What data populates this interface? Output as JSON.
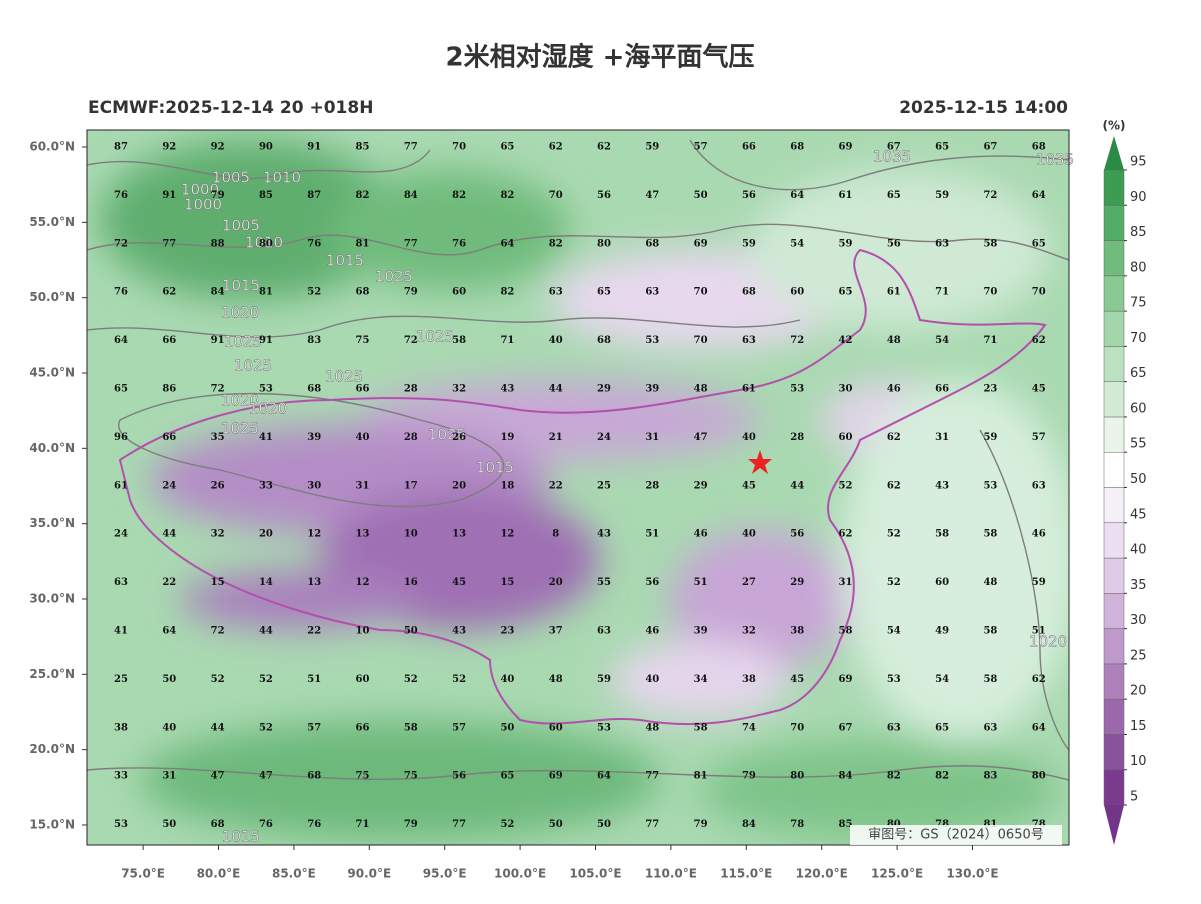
{
  "title": "2米相对湿度 +海平面气压",
  "subtitle_left": "ECMWF:2025-12-14 20 +018H",
  "subtitle_right": "2025-12-15 14:00",
  "approval": "审图号：GS（2024）0650号",
  "map": {
    "xlim": [
      71.28,
      136.4
    ],
    "ylim": [
      13.67,
      61.13
    ],
    "xticks": [
      {
        "value": 75,
        "label": "75.0°E"
      },
      {
        "value": 80,
        "label": "80.0°E"
      },
      {
        "value": 85,
        "label": "85.0°E"
      },
      {
        "value": 90,
        "label": "90.0°E"
      },
      {
        "value": 95,
        "label": "95.0°E"
      },
      {
        "value": 100,
        "label": "100.0°E"
      },
      {
        "value": 105,
        "label": "105.0°E"
      },
      {
        "value": 110,
        "label": "110.0°E"
      },
      {
        "value": 115,
        "label": "115.0°E"
      },
      {
        "value": 120,
        "label": "120.0°E"
      },
      {
        "value": 125,
        "label": "125.0°E"
      },
      {
        "value": 130,
        "label": "130.0°E"
      }
    ],
    "yticks": [
      {
        "value": 60,
        "label": "60.0°N"
      },
      {
        "value": 55,
        "label": "55.0°N"
      },
      {
        "value": 50,
        "label": "50.0°N"
      },
      {
        "value": 45,
        "label": "45.0°N"
      },
      {
        "value": 40,
        "label": "40.0°N"
      },
      {
        "value": 35,
        "label": "35.0°N"
      },
      {
        "value": 30,
        "label": "30.0°N"
      },
      {
        "value": 25,
        "label": "25.0°N"
      },
      {
        "value": 20,
        "label": "20.0°N"
      },
      {
        "value": 15,
        "label": "15.0°N"
      }
    ],
    "humidity_grid": [
      [
        87,
        92,
        92,
        90,
        91,
        85,
        77,
        70,
        65,
        62,
        62,
        59,
        57,
        66,
        68,
        69,
        67,
        65,
        67,
        68
      ],
      [
        76,
        91,
        79,
        85,
        87,
        82,
        84,
        82,
        82,
        70,
        56,
        47,
        50,
        56,
        64,
        61,
        65,
        59,
        72,
        64
      ],
      [
        72,
        77,
        88,
        80,
        76,
        81,
        77,
        76,
        64,
        82,
        80,
        68,
        69,
        59,
        54,
        59,
        56,
        63,
        58,
        65
      ],
      [
        76,
        62,
        84,
        81,
        52,
        68,
        79,
        60,
        82,
        63,
        65,
        63,
        70,
        68,
        60,
        65,
        61,
        71,
        70,
        70
      ],
      [
        64,
        66,
        91,
        91,
        83,
        75,
        72,
        58,
        71,
        40,
        68,
        53,
        70,
        63,
        72,
        42,
        48,
        54,
        71,
        62
      ],
      [
        65,
        86,
        72,
        53,
        68,
        66,
        28,
        32,
        43,
        44,
        29,
        39,
        48,
        61,
        53,
        30,
        46,
        66,
        23,
        45
      ],
      [
        96,
        66,
        35,
        41,
        39,
        40,
        28,
        26,
        19,
        21,
        24,
        31,
        47,
        40,
        28,
        60,
        62,
        31,
        59,
        57
      ],
      [
        61,
        24,
        26,
        33,
        30,
        31,
        17,
        20,
        18,
        22,
        25,
        28,
        29,
        45,
        44,
        52,
        62,
        43,
        53,
        63
      ],
      [
        24,
        44,
        32,
        20,
        12,
        13,
        10,
        13,
        12,
        8,
        43,
        51,
        46,
        40,
        56,
        62,
        52,
        58,
        58,
        46
      ],
      [
        63,
        22,
        15,
        14,
        13,
        12,
        16,
        45,
        15,
        20,
        55,
        56,
        51,
        27,
        29,
        31,
        52,
        60,
        48,
        59
      ],
      [
        41,
        64,
        72,
        44,
        22,
        10,
        50,
        43,
        23,
        37,
        63,
        46,
        39,
        32,
        38,
        58,
        54,
        49,
        58,
        51
      ],
      [
        25,
        50,
        52,
        52,
        51,
        60,
        52,
        52,
        40,
        48,
        59,
        40,
        34,
        38,
        45,
        69,
        53,
        54,
        58,
        62
      ],
      [
        38,
        40,
        44,
        52,
        57,
        66,
        58,
        57,
        50,
        60,
        53,
        48,
        58,
        74,
        70,
        67,
        63,
        65,
        63,
        64
      ],
      [
        33,
        31,
        47,
        47,
        68,
        75,
        75,
        56,
        65,
        69,
        64,
        77,
        81,
        79,
        80,
        84,
        82,
        82,
        83,
        80
      ],
      [
        53,
        50,
        68,
        76,
        76,
        71,
        79,
        77,
        52,
        50,
        50,
        77,
        79,
        84,
        78,
        85,
        80,
        78,
        81,
        78
      ]
    ],
    "isobar_labels": [
      1000,
      1005,
      1010,
      1000,
      1005,
      1010,
      1015,
      1025,
      1015,
      1020,
      1025,
      1025,
      1025,
      1020,
      1020,
      1025,
      1025,
      1015,
      1025,
      1035,
      1035,
      1020,
      1015
    ]
  },
  "colorbar": {
    "unit": "(%)",
    "ticks": [
      5,
      10,
      15,
      20,
      25,
      30,
      35,
      40,
      45,
      50,
      55,
      60,
      65,
      70,
      75,
      80,
      85,
      90,
      95
    ],
    "colors": [
      "#7a3b8e",
      "#8a519c",
      "#9b68ab",
      "#ad80bb",
      "#bf99cb",
      "#d0b3da",
      "#dfcbe7",
      "#ebdff1",
      "#f5eff8",
      "#ffffff",
      "#e9f5ea",
      "#d2ebd5",
      "#bce1c0",
      "#a3d6aa",
      "#89c993",
      "#6fbc7d",
      "#54ad66",
      "#3b9c52"
    ],
    "under": "#73358a",
    "over": "#2b8a45"
  }
}
